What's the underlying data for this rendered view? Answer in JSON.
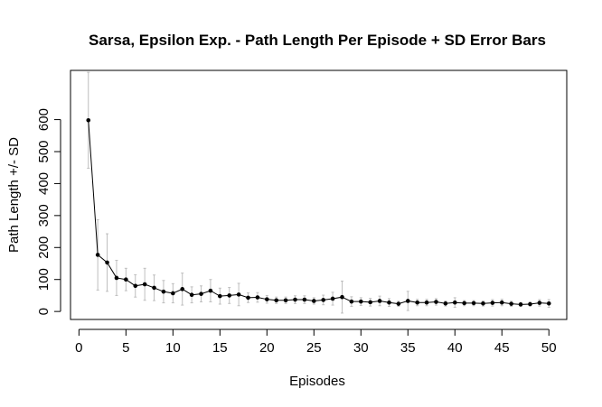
{
  "chart_data": {
    "type": "line",
    "title": "Sarsa, Epsilon Exp. - Path Length Per Episode + SD Error Bars",
    "xlabel": "Episodes",
    "ylabel": "Path Length +/- SD",
    "xlim": [
      -0.9,
      51.9
    ],
    "ylim": [
      -25,
      754
    ],
    "xticks": [
      0,
      5,
      10,
      15,
      20,
      25,
      30,
      35,
      40,
      45,
      50
    ],
    "xtick_labels": [
      "0",
      "5",
      "10",
      "15",
      "20",
      "25",
      "30",
      "35",
      "40",
      "45",
      "50"
    ],
    "yticks": [
      0,
      100,
      200,
      300,
      400,
      500,
      600
    ],
    "ytick_labels": [
      "0",
      "100",
      "200",
      "300",
      "400",
      "500",
      "600"
    ],
    "grid": false,
    "colors": {
      "line": "#000000",
      "points": "#000000",
      "error_bars": "#bebebe",
      "frame": "#000000"
    },
    "series": [
      {
        "x": [
          1,
          2,
          3,
          4,
          5,
          6,
          7,
          8,
          9,
          10,
          11,
          12,
          13,
          14,
          15,
          16,
          17,
          18,
          19,
          20,
          21,
          22,
          23,
          24,
          25,
          26,
          27,
          28,
          29,
          30,
          31,
          32,
          33,
          34,
          35,
          36,
          37,
          38,
          39,
          40,
          41,
          42,
          43,
          44,
          45,
          46,
          47,
          48,
          49,
          50
        ],
        "y": [
          598,
          177,
          153,
          105,
          100,
          80,
          85,
          74,
          62,
          57,
          70,
          52,
          55,
          65,
          48,
          50,
          53,
          43,
          44,
          38,
          35,
          35,
          37,
          37,
          33,
          36,
          40,
          45,
          31,
          31,
          29,
          33,
          28,
          24,
          33,
          28,
          28,
          30,
          25,
          28,
          26,
          26,
          25,
          27,
          28,
          24,
          22,
          23,
          27,
          25
        ],
        "sd": [
          150,
          110,
          90,
          55,
          35,
          35,
          50,
          40,
          35,
          30,
          50,
          25,
          25,
          35,
          25,
          25,
          35,
          15,
          15,
          12,
          10,
          10,
          12,
          12,
          10,
          15,
          20,
          50,
          15,
          12,
          12,
          15,
          12,
          8,
          30,
          10,
          10,
          10,
          8,
          15,
          8,
          8,
          8,
          10,
          10,
          8,
          6,
          6,
          10,
          12
        ]
      }
    ]
  }
}
